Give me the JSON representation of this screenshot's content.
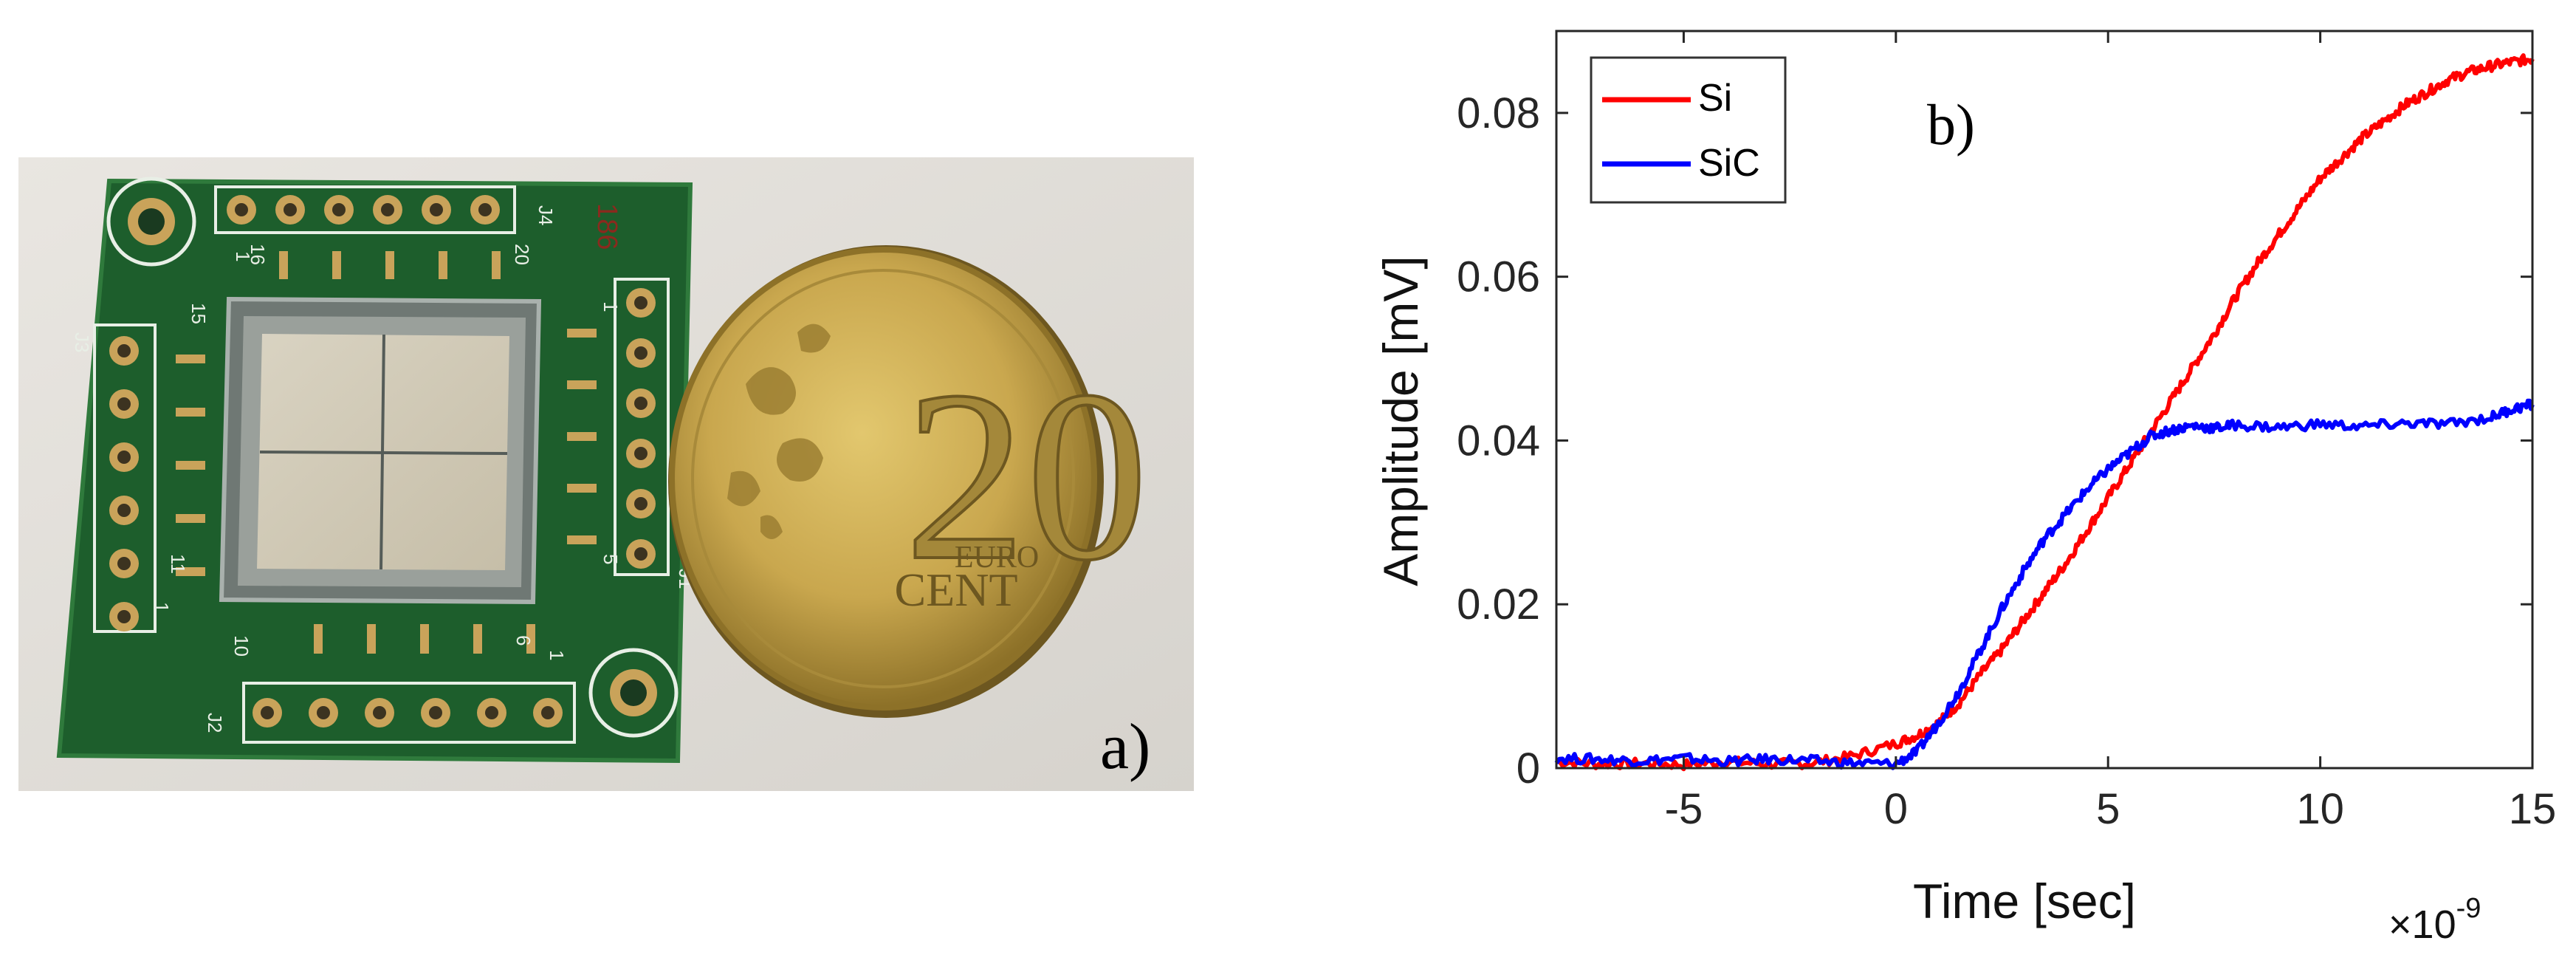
{
  "panel_a": {
    "label": "a)",
    "pcb": {
      "silkscreen": {
        "header_labels": [
          "J1",
          "J2",
          "J3",
          "J4"
        ],
        "pin_numbers": [
          "1",
          "5",
          "6",
          "10",
          "11",
          "15",
          "16",
          "20",
          "1",
          "1",
          "1"
        ],
        "serial_mark": "186"
      },
      "colors": {
        "board": "#1d5e2c",
        "board_edge": "#2f7a3c",
        "pad": "#c9a35a",
        "silk": "#e8efe6"
      }
    },
    "coin": {
      "value": "20",
      "word_top": "EURO",
      "word_bottom": "CENT",
      "colors": {
        "face": "#c9a74e",
        "rim": "#8d7128",
        "shadow": "#6d5720"
      }
    }
  },
  "panel_b": {
    "label": "b)",
    "chart_data": {
      "type": "line",
      "title": "",
      "xlabel": "Time [sec]",
      "ylabel": "Amplitude [mV]",
      "x_multiplier": "×10",
      "x_multiplier_exponent": "-9",
      "xlim": [
        -8,
        15
      ],
      "ylim": [
        0,
        0.09
      ],
      "xticks": [
        -5,
        0,
        5,
        10,
        15
      ],
      "xtick_labels": [
        "-5",
        "0",
        "5",
        "10",
        "15"
      ],
      "yticks": [
        0,
        0.02,
        0.04,
        0.06,
        0.08
      ],
      "ytick_labels": [
        "0",
        "0.02",
        "0.04",
        "0.06",
        "0.08"
      ],
      "grid": false,
      "legend_position": "top-left",
      "series": [
        {
          "name": "Si",
          "color": "#ff0000",
          "x": [
            -8,
            -7,
            -6,
            -5,
            -4,
            -3,
            -2,
            -1,
            0,
            0.5,
            1,
            1.5,
            2,
            2.5,
            3,
            3.5,
            4,
            4.5,
            5,
            5.5,
            6,
            6.5,
            7,
            7.5,
            8,
            8.5,
            9,
            9.5,
            10,
            10.5,
            11,
            11.5,
            12,
            12.5,
            13,
            13.5,
            14,
            14.5,
            15
          ],
          "y": [
            0.0008,
            0.0005,
            0.0006,
            0.0004,
            0.0008,
            0.0005,
            0.0006,
            0.0015,
            0.003,
            0.004,
            0.0055,
            0.008,
            0.0115,
            0.0145,
            0.018,
            0.0215,
            0.025,
            0.029,
            0.033,
            0.037,
            0.041,
            0.045,
            0.049,
            0.053,
            0.0575,
            0.0615,
            0.065,
            0.0685,
            0.072,
            0.0745,
            0.077,
            0.079,
            0.081,
            0.0825,
            0.084,
            0.085,
            0.0857,
            0.0862,
            0.0866
          ]
        },
        {
          "name": "SiC",
          "color": "#0000ff",
          "x": [
            -8,
            -7,
            -6,
            -5,
            -4,
            -3,
            -2,
            -1,
            0,
            0.5,
            1,
            1.5,
            2,
            2.5,
            3,
            3.5,
            4,
            4.5,
            5,
            5.5,
            6,
            6.5,
            7,
            7.5,
            8,
            9,
            10,
            11,
            12,
            13,
            14,
            14.5,
            15
          ],
          "y": [
            0.0012,
            0.0011,
            0.0009,
            0.0012,
            0.0008,
            0.0011,
            0.0009,
            0.0006,
            0.0005,
            0.002,
            0.0055,
            0.0095,
            0.0145,
            0.0195,
            0.024,
            0.028,
            0.031,
            0.034,
            0.0365,
            0.0385,
            0.0405,
            0.0413,
            0.0418,
            0.0415,
            0.0419,
            0.0416,
            0.042,
            0.0417,
            0.0421,
            0.042,
            0.0428,
            0.0438,
            0.0444
          ]
        }
      ]
    }
  }
}
